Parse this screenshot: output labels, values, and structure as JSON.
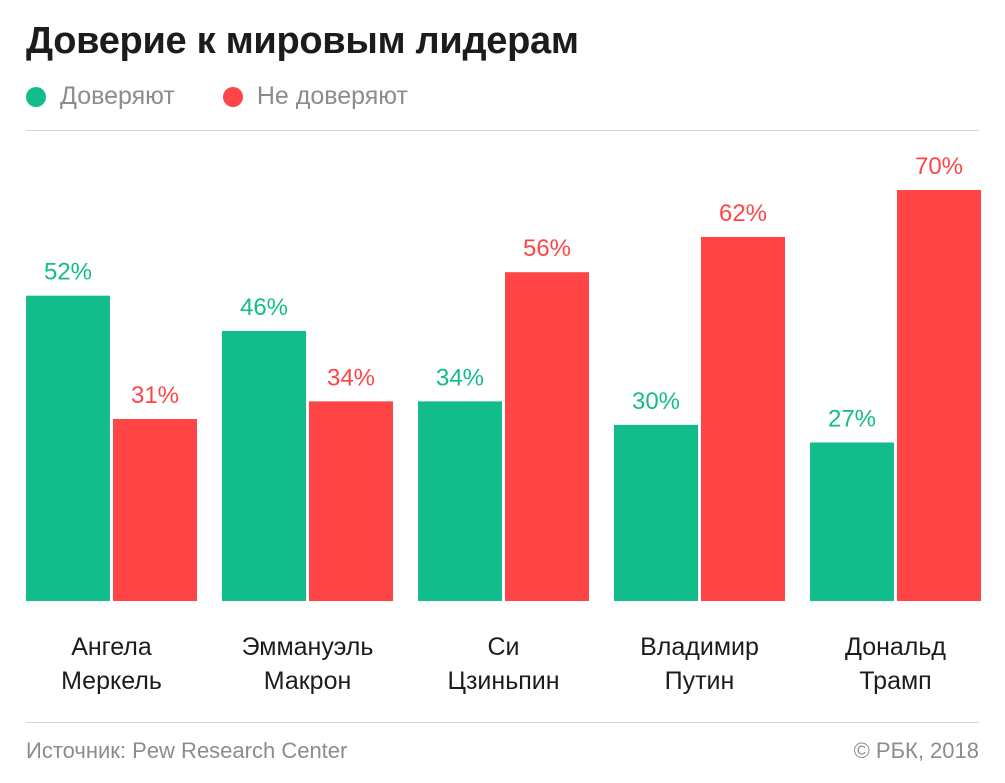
{
  "colors": {
    "trust": "#13bd8b",
    "distrust": "#ff4545"
  },
  "legend": [
    {
      "label": "Доверяют",
      "color": "#13bd8b"
    },
    {
      "label": "Не доверяют",
      "color": "#ff4545"
    }
  ],
  "footer": {
    "source": "Источник: Pew Research Center",
    "copyright": "© РБК, 2018"
  },
  "chart_data": {
    "type": "bar",
    "title": "Доверие к мировым лидерам",
    "categories": [
      [
        "Ангела",
        "Меркель"
      ],
      [
        "Эммануэль",
        "Макрон"
      ],
      [
        "Си",
        "Цзиньпин"
      ],
      [
        "Владимир",
        "Путин"
      ],
      [
        "Дональд",
        "Трамп"
      ]
    ],
    "series": [
      {
        "name": "Доверяют",
        "values": [
          52,
          46,
          34,
          30,
          27
        ],
        "labels": [
          "52%",
          "46%",
          "34%",
          "30%",
          "27%"
        ]
      },
      {
        "name": "Не доверяют",
        "values": [
          31,
          34,
          56,
          62,
          70
        ],
        "labels": [
          "31%",
          "34%",
          "56%",
          "62%",
          "70%"
        ]
      }
    ],
    "xlabel": "",
    "ylabel": "",
    "ylim": [
      0,
      70
    ],
    "grid": false,
    "legend_position": "top-left"
  }
}
